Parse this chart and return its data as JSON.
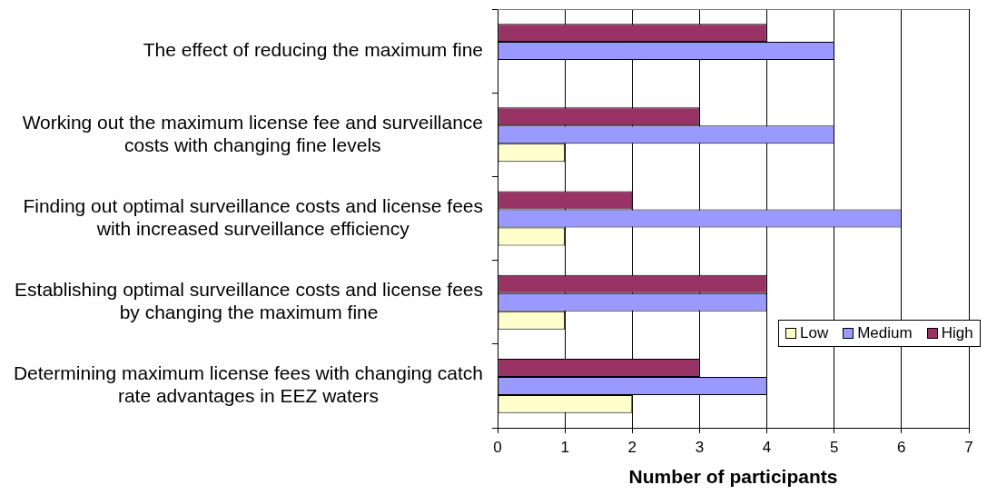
{
  "chart_data": {
    "type": "bar",
    "orientation": "horizontal",
    "categories": [
      "The effect of reducing the maximum fine",
      "Working out the maximum license fee and surveillance costs with changing fine levels",
      "Finding out optimal surveillance costs and license fees with increased surveillance efficiency",
      "Establishing optimal surveillance costs and license fees by changing the maximum fine",
      "Determining maximum license fees with changing catch rate advantages in EEZ waters"
    ],
    "series": [
      {
        "name": "Low",
        "color": "#ffffcc",
        "values": [
          null,
          1,
          1,
          1,
          2
        ]
      },
      {
        "name": "Medium",
        "color": "#9999ff",
        "values": [
          5,
          5,
          6,
          4,
          4
        ]
      },
      {
        "name": "High",
        "color": "#993366",
        "values": [
          4,
          3,
          2,
          4,
          3
        ]
      }
    ],
    "xlabel": "Number of participants",
    "xlim": [
      0,
      7
    ],
    "xticks": [
      0,
      1,
      2,
      3,
      4,
      5,
      6,
      7
    ],
    "grid": "x",
    "legend": "right"
  }
}
